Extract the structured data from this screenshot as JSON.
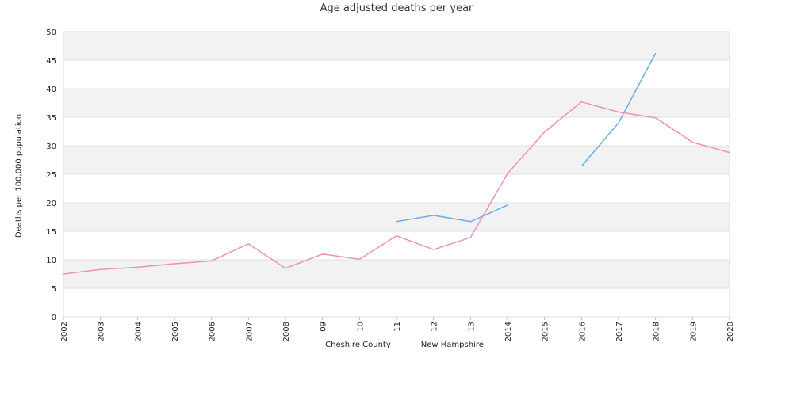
{
  "chart_data": {
    "type": "line",
    "title": "Age adjusted deaths per year",
    "xlabel": "",
    "ylabel": "Deaths per 100,000 population",
    "ylim": [
      0,
      50
    ],
    "yticks": [
      "0",
      "5",
      "10",
      "15",
      "20",
      "25",
      "30",
      "35",
      "40",
      "45",
      "50"
    ],
    "categories": [
      "2002",
      "2003",
      "2004",
      "2005",
      "2006",
      "2007",
      "2008",
      "09",
      "10",
      "11",
      "12",
      "13",
      "2014",
      "2015",
      "2016",
      "2017",
      "2018",
      "2019",
      "2020"
    ],
    "grid": "horizontal alternating bands",
    "legend_position": "bottom",
    "series": [
      {
        "name": "Cheshire County",
        "color": "#6aade4",
        "values": [
          null,
          null,
          null,
          null,
          null,
          null,
          null,
          null,
          null,
          16.7,
          17.8,
          16.7,
          19.6,
          null,
          26.4,
          34.0,
          46.2,
          null,
          null
        ]
      },
      {
        "name": "New Hampshire",
        "color": "#ef8fc0",
        "values": [
          7.5,
          8.3,
          8.7,
          9.3,
          9.8,
          12.8,
          8.5,
          11.0,
          10.1,
          14.2,
          11.8,
          13.9,
          25.1,
          32.4,
          37.7,
          35.9,
          34.9,
          30.6,
          28.8
        ]
      }
    ]
  }
}
